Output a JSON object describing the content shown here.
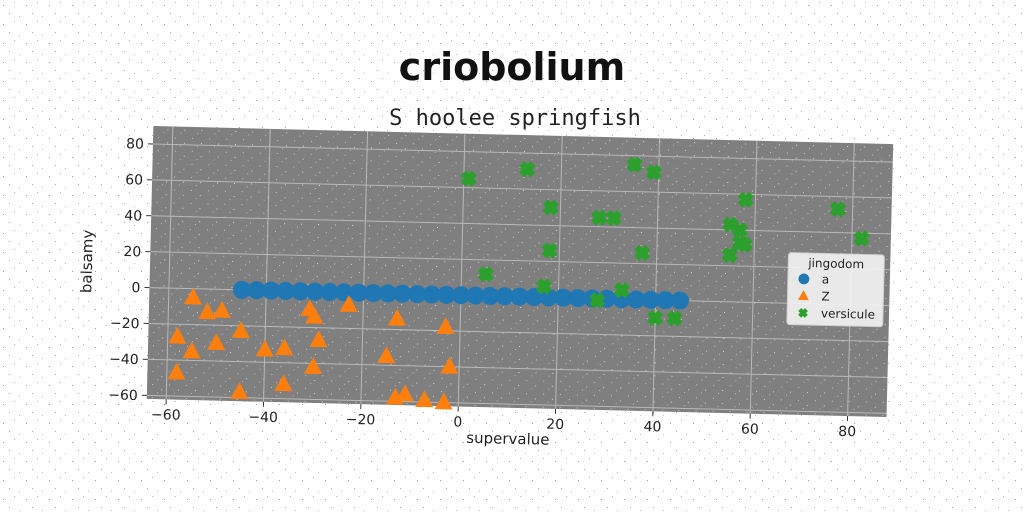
{
  "chart_data": {
    "type": "scatter",
    "title": "criobolium",
    "subtitle": "S hoolee springfish",
    "xlabel": "supervalue",
    "ylabel": "balsamy",
    "xlim": [
      -64,
      88
    ],
    "ylim": [
      -62,
      90
    ],
    "xticks": [
      -60,
      -40,
      -20,
      0,
      20,
      40,
      60,
      80
    ],
    "xtick_labels": [
      "−60",
      "−40",
      "−20",
      "0",
      "20",
      "40",
      "60",
      "80"
    ],
    "yticks": [
      -60,
      -40,
      -20,
      0,
      20,
      40,
      60,
      80
    ],
    "ytick_labels": [
      "−60",
      "−40",
      "−20",
      "0",
      "20",
      "40",
      "60",
      "80"
    ],
    "grid": true,
    "legend": {
      "title": "jingodom",
      "placement": "center-right"
    },
    "series": [
      {
        "name": "a",
        "marker": "circle",
        "color": "#1f77b4",
        "points": [
          [
            -45,
            0
          ],
          [
            -42,
            0
          ],
          [
            -39,
            0
          ],
          [
            -36,
            0
          ],
          [
            -33,
            0
          ],
          [
            -30,
            0
          ],
          [
            -27,
            0
          ],
          [
            -24,
            0
          ],
          [
            -21,
            0
          ],
          [
            -18,
            0
          ],
          [
            -15,
            0
          ],
          [
            -12,
            0
          ],
          [
            -9,
            0
          ],
          [
            -6,
            0
          ],
          [
            -3,
            0
          ],
          [
            0,
            0
          ],
          [
            3,
            0
          ],
          [
            6,
            0
          ],
          [
            9,
            0
          ],
          [
            12,
            0
          ],
          [
            15,
            0
          ],
          [
            18,
            0
          ],
          [
            21,
            0
          ],
          [
            24,
            0
          ],
          [
            27,
            0
          ],
          [
            30,
            0
          ],
          [
            33,
            0
          ],
          [
            36,
            0
          ],
          [
            39,
            0
          ],
          [
            42,
            0
          ],
          [
            45,
            0
          ]
        ]
      },
      {
        "name": "Z",
        "marker": "triangle",
        "color": "#ff7f0e",
        "points": [
          [
            -55,
            -5
          ],
          [
            -52,
            -13
          ],
          [
            -49,
            -12
          ],
          [
            -45,
            -23
          ],
          [
            -58,
            -27
          ],
          [
            -55,
            -35
          ],
          [
            -50,
            -30
          ],
          [
            -40,
            -33
          ],
          [
            -36,
            -32
          ],
          [
            -31,
            -10
          ],
          [
            -30,
            -14
          ],
          [
            -29,
            -27
          ],
          [
            -23,
            -7
          ],
          [
            -13,
            -14
          ],
          [
            -15,
            -35
          ],
          [
            -30,
            -42
          ],
          [
            -36,
            -52
          ],
          [
            -45,
            -57
          ],
          [
            -58,
            -47
          ],
          [
            -3,
            -18
          ],
          [
            -2,
            -40
          ],
          [
            -13,
            -58
          ],
          [
            -11,
            -56
          ],
          [
            -7,
            -59
          ],
          [
            -3,
            -60
          ]
        ]
      },
      {
        "name": "versicule",
        "marker": "x",
        "color": "#2ca02c",
        "points": [
          [
            1,
            65
          ],
          [
            13,
            71
          ],
          [
            35,
            75
          ],
          [
            39,
            71
          ],
          [
            18,
            50
          ],
          [
            28,
            45
          ],
          [
            31,
            45
          ],
          [
            58,
            57
          ],
          [
            77,
            53
          ],
          [
            82,
            37
          ],
          [
            18,
            26
          ],
          [
            37,
            26
          ],
          [
            55,
            43
          ],
          [
            57,
            40
          ],
          [
            57,
            33
          ],
          [
            55,
            26
          ],
          [
            58,
            32
          ],
          [
            5,
            12
          ],
          [
            17,
            6
          ],
          [
            33,
            5
          ],
          [
            28,
            -1
          ],
          [
            40,
            -10
          ],
          [
            44,
            -10
          ]
        ]
      }
    ]
  }
}
